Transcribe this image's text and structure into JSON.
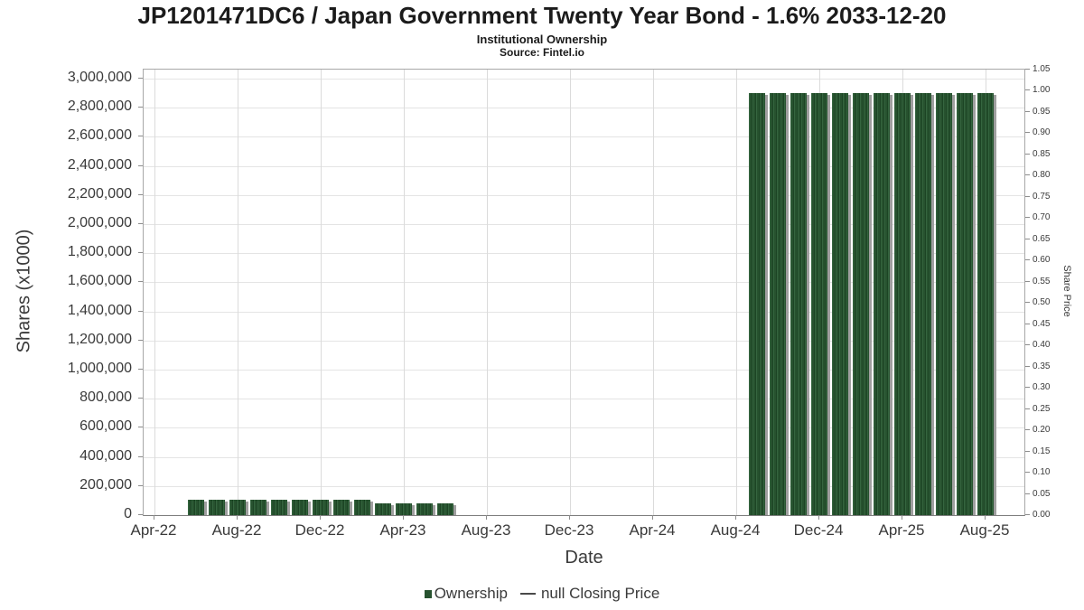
{
  "header": {
    "title": "JP1201471DC6 / Japan Government Twenty Year Bond - 1.6% 2033-12-20",
    "subtitle": "Institutional Ownership",
    "source": "Source: Fintel.io"
  },
  "chart_data": {
    "type": "bar",
    "title": "JP1201471DC6 / Japan Government Twenty Year Bond - 1.6% 2033-12-20",
    "subtitle": "Institutional Ownership",
    "source": "Source: Fintel.io",
    "xlabel": "Date",
    "ylabel_left": "Shares (x1000)",
    "ylabel_right": "Share Price",
    "grid": true,
    "legend_position": "bottom",
    "x_axis": {
      "unit": "month",
      "origin_label": "Apr-22",
      "tick_labels": [
        "Apr-22",
        "Aug-22",
        "Dec-22",
        "Apr-23",
        "Aug-23",
        "Dec-23",
        "Apr-24",
        "Aug-24",
        "Dec-24",
        "Apr-25",
        "Aug-25"
      ],
      "tick_month_indices": [
        0,
        4,
        8,
        12,
        16,
        20,
        24,
        28,
        32,
        36,
        40
      ]
    },
    "left_axis": {
      "label": "Shares (x1000)",
      "min": 0,
      "max": 3000000,
      "tick_step": 200000,
      "tick_labels": [
        "0",
        "200,000",
        "400,000",
        "600,000",
        "800,000",
        "1,000,000",
        "1,200,000",
        "1,400,000",
        "1,600,000",
        "1,800,000",
        "2,000,000",
        "2,200,000",
        "2,400,000",
        "2,600,000",
        "2,800,000",
        "3,000,000"
      ]
    },
    "right_axis": {
      "label": "Share Price",
      "min": 0,
      "max": 1.05,
      "tick_step": 0.05,
      "tick_labels": [
        "0.00",
        "0.05",
        "0.10",
        "0.15",
        "0.20",
        "0.25",
        "0.30",
        "0.35",
        "0.40",
        "0.45",
        "0.50",
        "0.55",
        "0.60",
        "0.65",
        "0.70",
        "0.75",
        "0.80",
        "0.85",
        "0.90",
        "0.95",
        "1.00",
        "1.05"
      ]
    },
    "series": [
      {
        "name": "Ownership",
        "axis": "left",
        "points": [
          {
            "month": "Jun-22",
            "m": 2,
            "value": 105000
          },
          {
            "month": "Jul-22",
            "m": 3,
            "value": 105000
          },
          {
            "month": "Aug-22",
            "m": 4,
            "value": 105000
          },
          {
            "month": "Sep-22",
            "m": 5,
            "value": 105000
          },
          {
            "month": "Oct-22",
            "m": 6,
            "value": 105000
          },
          {
            "month": "Nov-22",
            "m": 7,
            "value": 105000
          },
          {
            "month": "Dec-22",
            "m": 8,
            "value": 105000
          },
          {
            "month": "Jan-23",
            "m": 9,
            "value": 105000
          },
          {
            "month": "Feb-23",
            "m": 10,
            "value": 105000
          },
          {
            "month": "Mar-23",
            "m": 11,
            "value": 80000
          },
          {
            "month": "Apr-23",
            "m": 12,
            "value": 80000
          },
          {
            "month": "May-23",
            "m": 13,
            "value": 80000
          },
          {
            "month": "Jun-23",
            "m": 14,
            "value": 80000
          },
          {
            "month": "Sep-24",
            "m": 29,
            "value": 2900000
          },
          {
            "month": "Oct-24",
            "m": 30,
            "value": 2900000
          },
          {
            "month": "Nov-24",
            "m": 31,
            "value": 2900000
          },
          {
            "month": "Dec-24",
            "m": 32,
            "value": 2900000
          },
          {
            "month": "Jan-25",
            "m": 33,
            "value": 2900000
          },
          {
            "month": "Feb-25",
            "m": 34,
            "value": 2900000
          },
          {
            "month": "Mar-25",
            "m": 35,
            "value": 2900000
          },
          {
            "month": "Apr-25",
            "m": 36,
            "value": 2900000
          },
          {
            "month": "May-25",
            "m": 37,
            "value": 2900000
          },
          {
            "month": "Jun-25",
            "m": 38,
            "value": 2900000
          },
          {
            "month": "Jul-25",
            "m": 39,
            "value": 2900000
          },
          {
            "month": "Aug-25",
            "m": 40,
            "value": 2900000
          }
        ]
      },
      {
        "name": "null Closing Price",
        "axis": "right",
        "points": []
      }
    ]
  },
  "legend": {
    "items": [
      {
        "label": "Ownership",
        "marker": "square",
        "color": "#27522f"
      },
      {
        "label": "null Closing Price",
        "marker": "line",
        "color": "#4a4a4a"
      }
    ]
  },
  "colors": {
    "bar_stripe_light": "#35653f",
    "bar_base": "#27522f",
    "bar_stripe_dark": "#1c4424",
    "bar_shadow": "#9f9f9f",
    "gridline": "#e4e4e4",
    "frame": "#a8a8a8"
  }
}
